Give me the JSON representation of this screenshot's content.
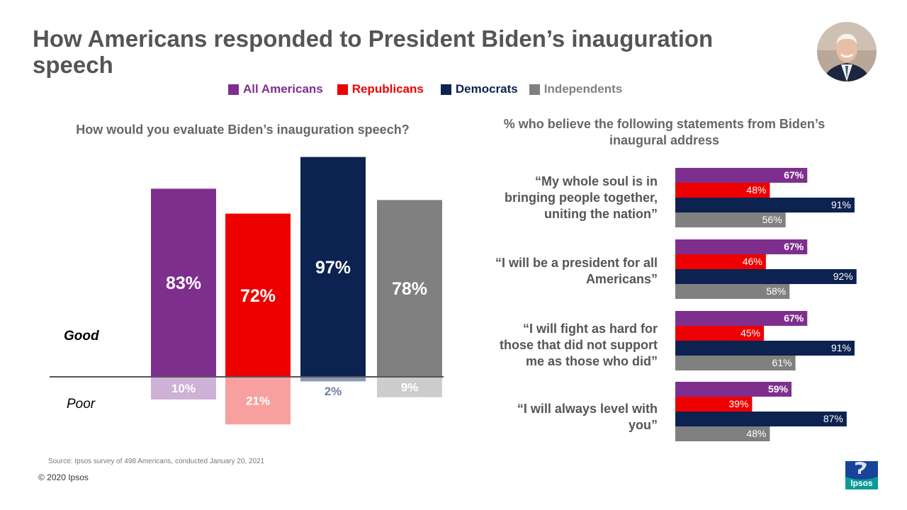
{
  "title": "How Americans responded to President Biden’s inauguration speech",
  "legend": [
    {
      "label": "All Americans",
      "color": "#7e2f8e"
    },
    {
      "label": "Republicans",
      "color": "#ee0000"
    },
    {
      "label": "Democrats",
      "color": "#0c2250"
    },
    {
      "label": "Independents",
      "color": "#808080"
    }
  ],
  "left_question": "How would you evaluate Biden’s inauguration speech?",
  "right_question": "% who believe the following statements from Biden’s inaugural address",
  "good_label": "Good",
  "poor_label": "Poor",
  "source": "Source: Ipsos survey of 498 Americans, conducted January 20, 2021",
  "copyright": "© 2020 Ipsos",
  "brand": "Ipsos",
  "chart_data": [
    {
      "type": "bar",
      "title": "How would you evaluate Biden’s inauguration speech?",
      "categories": [
        "All Americans",
        "Republicans",
        "Democrats",
        "Independents"
      ],
      "series": [
        {
          "name": "Good",
          "values": [
            83,
            72,
            97,
            78
          ],
          "labels": [
            "83%",
            "72%",
            "97%",
            "78%"
          ],
          "colors": [
            "#7e2f8e",
            "#ee0000",
            "#0c2250",
            "#808080"
          ]
        },
        {
          "name": "Poor",
          "values": [
            10,
            21,
            2,
            9
          ],
          "labels": [
            "10%",
            "21%",
            "2%",
            "9%"
          ],
          "colors": [
            "#cfb0d6",
            "#f8a0a0",
            "#8a98b3",
            "#cdcdcd"
          ]
        }
      ],
      "ylim": [
        0,
        100
      ]
    },
    {
      "type": "bar",
      "orientation": "horizontal",
      "title": "% who believe the following statements from Biden’s inaugural address",
      "categories": [
        "“My whole soul is in bringing people together, uniting the nation”",
        "“I will be a president for all Americans”",
        "“I will fight as hard for those that did not support me as those who did”",
        "“I will always level with you”"
      ],
      "series": [
        {
          "name": "All Americans",
          "values": [
            67,
            67,
            67,
            59
          ],
          "labels": [
            "67%",
            "67%",
            "67%",
            "59%"
          ]
        },
        {
          "name": "Republicans",
          "values": [
            48,
            46,
            45,
            39
          ],
          "labels": [
            "48%",
            "46%",
            "45%",
            "39%"
          ]
        },
        {
          "name": "Democrats",
          "values": [
            91,
            92,
            91,
            87
          ],
          "labels": [
            "91%",
            "92%",
            "91%",
            "87%"
          ]
        },
        {
          "name": "Independents",
          "values": [
            56,
            58,
            61,
            48
          ],
          "labels": [
            "56%",
            "58%",
            "61%",
            "48%"
          ]
        }
      ],
      "xlim": [
        0,
        100
      ]
    }
  ]
}
